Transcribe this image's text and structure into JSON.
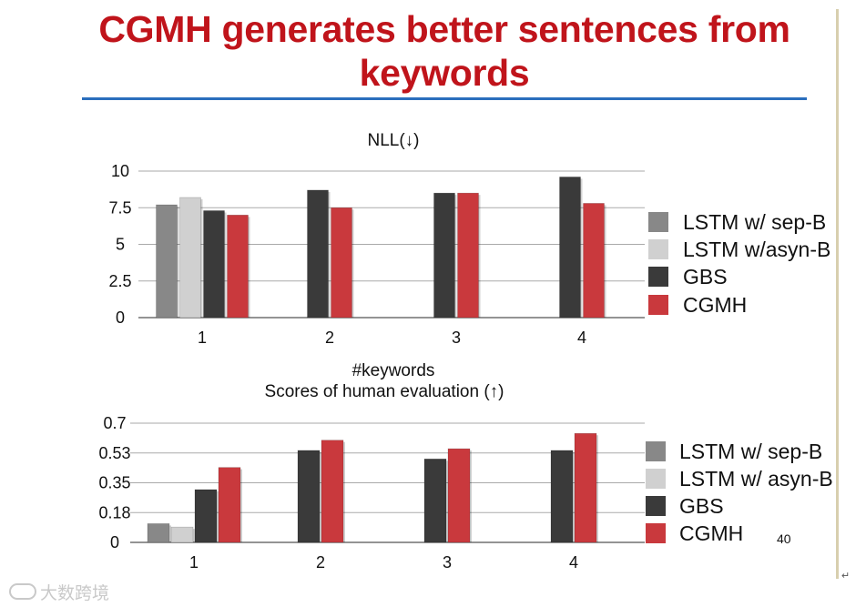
{
  "slide": {
    "title": "CGMH generates better sentences from keywords",
    "page_number": "40",
    "watermark": "大数跨境",
    "return_mark": "↵",
    "colors": {
      "title": "#c0141b",
      "title_rule": "#2a6ebd",
      "lstm_sep": "#888888",
      "lstm_asyn": "#d0d0d0",
      "gbs": "#3a3a3a",
      "cgmh": "#c9393d"
    }
  },
  "chart_data": [
    {
      "type": "bar",
      "title": "NLL(↓)",
      "xlabel": "#keywords",
      "categories": [
        "1",
        "2",
        "3",
        "4"
      ],
      "yticks": [
        "10",
        "7.5",
        "5",
        "2.5",
        "0"
      ],
      "ylim": [
        0,
        10
      ],
      "grid": true,
      "legend_position": "right",
      "series": [
        {
          "name": "LSTM w/ sep-B",
          "color": "#888888",
          "values": [
            7.7,
            null,
            null,
            null
          ]
        },
        {
          "name": "LSTM w/asyn-B",
          "color": "#d0d0d0",
          "values": [
            8.2,
            null,
            null,
            null
          ]
        },
        {
          "name": "GBS",
          "color": "#3a3a3a",
          "values": [
            7.3,
            8.7,
            8.5,
            9.6
          ]
        },
        {
          "name": "CGMH",
          "color": "#c9393d",
          "values": [
            7.0,
            7.5,
            8.5,
            7.8
          ]
        }
      ]
    },
    {
      "type": "bar",
      "title": "Scores of human evaluation (↑)",
      "xlabel": "",
      "categories": [
        "1",
        "2",
        "3",
        "4"
      ],
      "yticks": [
        "0.7",
        "0.53",
        "0.35",
        "0.18",
        "0"
      ],
      "ylim": [
        0,
        0.7
      ],
      "grid": true,
      "legend_position": "right",
      "series": [
        {
          "name": "LSTM w/ sep-B",
          "color": "#888888",
          "values": [
            0.11,
            null,
            null,
            null
          ]
        },
        {
          "name": "LSTM w/ asyn-B",
          "color": "#d0d0d0",
          "values": [
            0.09,
            null,
            null,
            null
          ]
        },
        {
          "name": "GBS",
          "color": "#3a3a3a",
          "values": [
            0.31,
            0.54,
            0.49,
            0.54
          ]
        },
        {
          "name": "CGMH",
          "color": "#c9393d",
          "values": [
            0.44,
            0.6,
            0.55,
            0.64
          ]
        }
      ]
    }
  ]
}
